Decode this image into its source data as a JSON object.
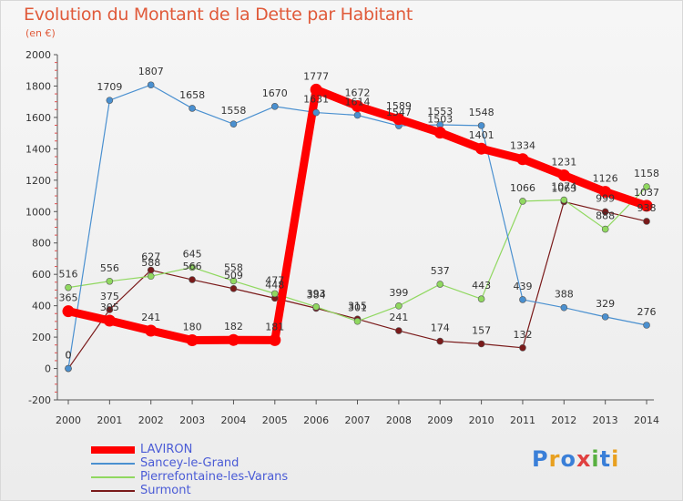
{
  "chart_data": {
    "type": "line",
    "title": "Evolution du Montant de la Dette par Habitant",
    "subtitle": "(en €)",
    "x": [
      2000,
      2001,
      2002,
      2003,
      2004,
      2005,
      2006,
      2007,
      2008,
      2009,
      2010,
      2011,
      2012,
      2013,
      2014
    ],
    "x_tick_labels": [
      "2000",
      "2001",
      "2002",
      "2003",
      "2004",
      "2005",
      "2006",
      "2007",
      "2008",
      "2009",
      "2010",
      "2011",
      "2012",
      "2013",
      "2014"
    ],
    "ylim": [
      -200,
      2000
    ],
    "y_ticks": [
      -200,
      0,
      200,
      400,
      600,
      800,
      1000,
      1200,
      1400,
      1600,
      1800,
      2000
    ],
    "y_tick_labels": [
      "-200",
      "0",
      "200",
      "400",
      "600",
      "800",
      "1000",
      "1200",
      "1400",
      "1600",
      "1800",
      "2000"
    ],
    "grid": false,
    "legend_position": "bottom-left",
    "series": [
      {
        "name": "LAVIRON",
        "color": "#ff0000",
        "values": [
          365,
          305,
          241,
          180,
          182,
          181,
          1777,
          1672,
          1589,
          1503,
          1401,
          1334,
          1231,
          1126,
          1037
        ],
        "labels": [
          "365",
          "305",
          "241",
          "180",
          "182",
          "181",
          "1777",
          "1672",
          "1589",
          "1503",
          "1401",
          "1334",
          "1231",
          "1126",
          "1037"
        ]
      },
      {
        "name": "Sancey-le-Grand",
        "color": "#4a90d0",
        "values": [
          0,
          1709,
          1807,
          1658,
          1558,
          1670,
          1631,
          1614,
          1547,
          1553,
          1548,
          439,
          388,
          329,
          276
        ],
        "labels": [
          "0",
          "1709",
          "1807",
          "1658",
          "1558",
          "1670",
          "1631",
          "1614",
          "1547",
          "1553",
          "1548",
          "439",
          "388",
          "329",
          "276"
        ]
      },
      {
        "name": "Pierrefontaine-les-Varans",
        "color": "#90d860",
        "values": [
          516,
          556,
          588,
          645,
          558,
          477,
          393,
          301,
          399,
          537,
          443,
          1066,
          1074,
          888,
          1158
        ],
        "labels": [
          "516",
          "556",
          "588",
          "645",
          "558",
          "477",
          "393",
          "301",
          "399",
          "537",
          "443",
          "1066",
          "1074",
          "888",
          "1158"
        ]
      },
      {
        "name": "Surmont",
        "color": "#7a1a1a",
        "values": [
          0,
          375,
          627,
          566,
          509,
          448,
          384,
          315,
          241,
          174,
          157,
          132,
          1063,
          999,
          938
        ],
        "labels": [
          "0",
          "375",
          "627",
          "566",
          "509",
          "448",
          "384",
          "315",
          "241",
          "174",
          "157",
          "132",
          "1063",
          "999",
          "938"
        ]
      }
    ]
  },
  "branding": {
    "logo_text": "Proxiti"
  }
}
